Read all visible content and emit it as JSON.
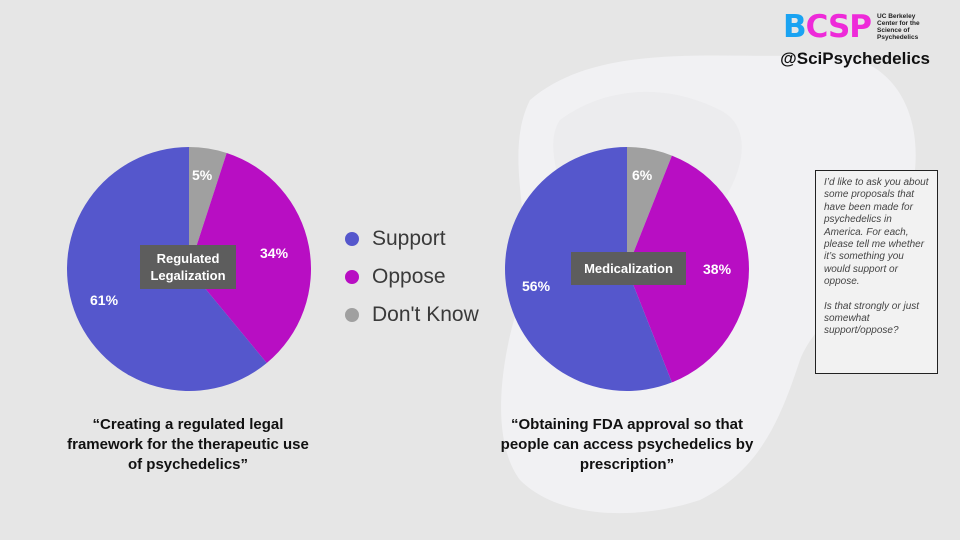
{
  "brand": {
    "logo_b": "B",
    "logo_csp": "CSP",
    "logo_line1": "UC Berkeley",
    "logo_line2": "Center for the",
    "logo_line3": "Science of",
    "logo_line4": "Psychedelics",
    "handle": "@SciPsychedelics"
  },
  "legend": {
    "support": "Support",
    "oppose": "Oppose",
    "dont_know": "Don't Know"
  },
  "colors": {
    "support": "#5557cc",
    "oppose": "#b80ec3",
    "dont_know": "#a0a0a0"
  },
  "chart_data": [
    {
      "type": "pie",
      "title": "Regulated Legalization",
      "categories": [
        "Don't Know",
        "Oppose",
        "Support"
      ],
      "values": [
        5,
        34,
        61
      ],
      "labels": [
        "5%",
        "34%",
        "61%"
      ],
      "caption": "“Creating a regulated legal framework for the therapeutic use of psychedelics”"
    },
    {
      "type": "pie",
      "title": "Medicalization",
      "categories": [
        "Don't Know",
        "Oppose",
        "Support"
      ],
      "values": [
        6,
        38,
        56
      ],
      "labels": [
        "6%",
        "38%",
        "56%"
      ],
      "caption": "“Obtaining FDA approval so that people can access psychedelics by prescription”"
    }
  ],
  "question": {
    "para1": "I’d like to ask you about some proposals that have been made for psychedelics in America. For each, please tell me whether it’s something you would support or oppose.",
    "para2": "Is that strongly or just somewhat support/oppose?"
  }
}
